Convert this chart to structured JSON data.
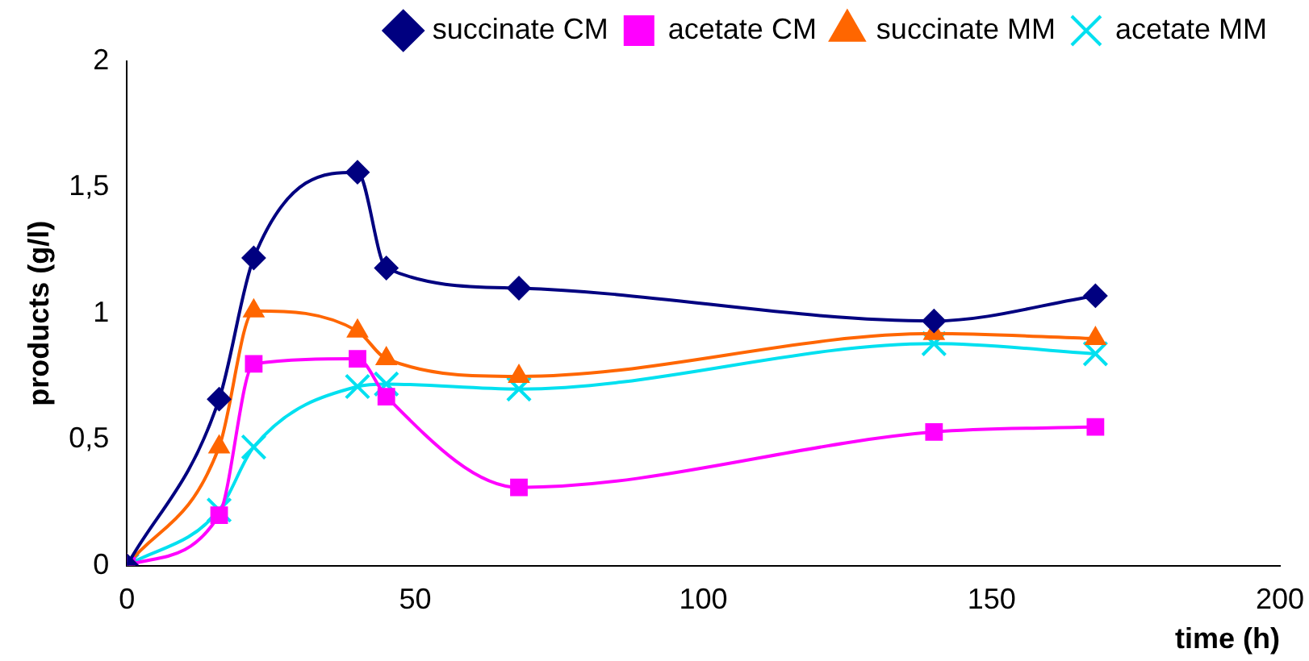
{
  "chart_data": {
    "type": "line",
    "xlabel": "time (h)",
    "ylabel": "products (g/l)",
    "x": [
      0,
      16,
      22,
      40,
      45,
      68,
      140,
      168
    ],
    "xlim": [
      0,
      200
    ],
    "xticks": [
      0,
      50,
      100,
      150,
      200
    ],
    "ylim": [
      0,
      2
    ],
    "yticks": [
      0,
      {
        "value": 0.5,
        "label": "0,5"
      },
      1,
      {
        "value": 1.5,
        "label": "1,5"
      },
      2
    ],
    "grid": false,
    "legend": "top right",
    "line_style": "solid",
    "series": [
      {
        "name": "succinate CM",
        "color": "#000080",
        "marker": "diamond",
        "values": [
          0,
          0.66,
          1.22,
          1.56,
          1.18,
          1.1,
          0.97,
          1.07
        ]
      },
      {
        "name": "acetate CM",
        "color": "#ff00ff",
        "marker": "square",
        "values": [
          0,
          0.2,
          0.8,
          0.82,
          0.67,
          0.31,
          0.53,
          0.55
        ]
      },
      {
        "name": "succinate MM",
        "color": "#ff6600",
        "marker": "triangle",
        "values": [
          0,
          0.47,
          1.01,
          0.93,
          0.82,
          0.75,
          0.92,
          0.9
        ]
      },
      {
        "name": "acetate MM",
        "color": "#00e0f0",
        "marker": "cross",
        "values": [
          0,
          0.22,
          0.47,
          0.71,
          0.72,
          0.7,
          0.88,
          0.84
        ]
      }
    ]
  }
}
